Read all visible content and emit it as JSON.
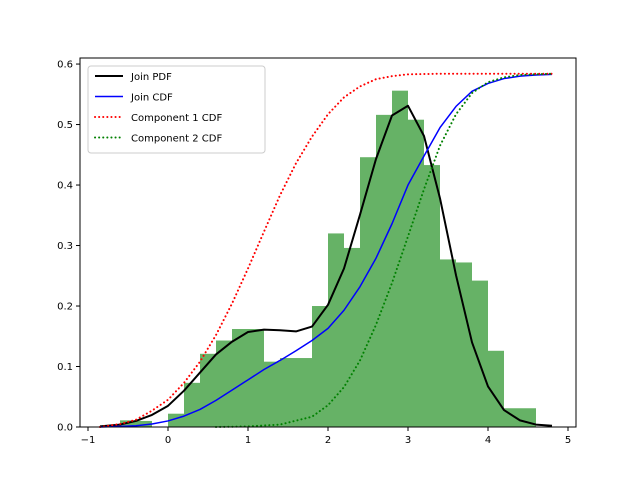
{
  "chart_data": {
    "type": "histogram+line",
    "title": "",
    "xlabel": "",
    "ylabel": "",
    "xlim": [
      -1.1,
      5.1
    ],
    "ylim": [
      0,
      0.61
    ],
    "xticks": [
      -1,
      0,
      1,
      2,
      3,
      4,
      5
    ],
    "yticks": [
      0.0,
      0.1,
      0.2,
      0.3,
      0.4,
      0.5,
      0.6
    ],
    "xtick_labels": [
      "−1",
      "0",
      "1",
      "2",
      "3",
      "4",
      "5"
    ],
    "ytick_labels": [
      "0.0",
      "0.1",
      "0.2",
      "0.3",
      "0.4",
      "0.5",
      "0.6"
    ],
    "grid": false,
    "legend_position": "top-left",
    "histogram": {
      "color": "#66b266",
      "bins": [
        {
          "x0": -0.6,
          "x1": -0.4,
          "value": 0.011
        },
        {
          "x0": -0.4,
          "x1": -0.2,
          "value": 0.01
        },
        {
          "x0": -0.2,
          "x1": 0.0,
          "value": 0.0
        },
        {
          "x0": 0.0,
          "x1": 0.2,
          "value": 0.022
        },
        {
          "x0": 0.2,
          "x1": 0.4,
          "value": 0.073
        },
        {
          "x0": 0.4,
          "x1": 0.6,
          "value": 0.121
        },
        {
          "x0": 0.6,
          "x1": 0.8,
          "value": 0.143
        },
        {
          "x0": 0.8,
          "x1": 1.0,
          "value": 0.162
        },
        {
          "x0": 1.0,
          "x1": 1.2,
          "value": 0.162
        },
        {
          "x0": 1.2,
          "x1": 1.4,
          "value": 0.108
        },
        {
          "x0": 1.4,
          "x1": 1.6,
          "value": 0.114
        },
        {
          "x0": 1.6,
          "x1": 1.8,
          "value": 0.114
        },
        {
          "x0": 1.8,
          "x1": 2.0,
          "value": 0.2
        },
        {
          "x0": 2.0,
          "x1": 2.2,
          "value": 0.32
        },
        {
          "x0": 2.2,
          "x1": 2.4,
          "value": 0.296
        },
        {
          "x0": 2.4,
          "x1": 2.6,
          "value": 0.446
        },
        {
          "x0": 2.6,
          "x1": 2.8,
          "value": 0.516
        },
        {
          "x0": 2.8,
          "x1": 3.0,
          "value": 0.556
        },
        {
          "x0": 3.0,
          "x1": 3.2,
          "value": 0.508
        },
        {
          "x0": 3.2,
          "x1": 3.4,
          "value": 0.433
        },
        {
          "x0": 3.4,
          "x1": 3.6,
          "value": 0.277
        },
        {
          "x0": 3.6,
          "x1": 3.8,
          "value": 0.272
        },
        {
          "x0": 3.8,
          "x1": 4.0,
          "value": 0.242
        },
        {
          "x0": 4.0,
          "x1": 4.2,
          "value": 0.126
        },
        {
          "x0": 4.2,
          "x1": 4.4,
          "value": 0.031
        },
        {
          "x0": 4.4,
          "x1": 4.6,
          "value": 0.031
        }
      ]
    },
    "series": [
      {
        "name": "Join PDF",
        "color": "#000000",
        "style": "solid",
        "width": 2,
        "x": [
          -0.85,
          -0.6,
          -0.4,
          -0.2,
          0.0,
          0.2,
          0.4,
          0.6,
          0.8,
          1.0,
          1.2,
          1.4,
          1.6,
          1.8,
          2.0,
          2.2,
          2.4,
          2.6,
          2.8,
          3.0,
          3.2,
          3.4,
          3.6,
          3.8,
          4.0,
          4.2,
          4.4,
          4.6,
          4.8
        ],
        "values": [
          0.001,
          0.004,
          0.01,
          0.02,
          0.035,
          0.06,
          0.09,
          0.12,
          0.141,
          0.157,
          0.161,
          0.16,
          0.158,
          0.166,
          0.202,
          0.262,
          0.351,
          0.443,
          0.515,
          0.531,
          0.481,
          0.378,
          0.251,
          0.14,
          0.067,
          0.028,
          0.011,
          0.004,
          0.002
        ]
      },
      {
        "name": "Join CDF",
        "color": "#0000ff",
        "style": "solid",
        "width": 1.5,
        "x": [
          -0.85,
          -0.6,
          -0.4,
          -0.2,
          0.0,
          0.2,
          0.4,
          0.6,
          0.8,
          1.0,
          1.2,
          1.4,
          1.6,
          1.8,
          2.0,
          2.2,
          2.4,
          2.6,
          2.8,
          3.0,
          3.2,
          3.4,
          3.6,
          3.8,
          4.0,
          4.2,
          4.4,
          4.6,
          4.8
        ],
        "values": [
          0.0,
          0.001,
          0.002,
          0.005,
          0.01,
          0.018,
          0.029,
          0.044,
          0.061,
          0.078,
          0.095,
          0.11,
          0.126,
          0.143,
          0.163,
          0.193,
          0.232,
          0.279,
          0.336,
          0.4,
          0.448,
          0.495,
          0.53,
          0.555,
          0.568,
          0.576,
          0.58,
          0.582,
          0.583
        ]
      },
      {
        "name": "Component 1 CDF",
        "color": "#ff0000",
        "style": "dotted",
        "width": 2,
        "x": [
          -0.85,
          -0.6,
          -0.4,
          -0.2,
          0.0,
          0.2,
          0.4,
          0.6,
          0.8,
          1.0,
          1.2,
          1.4,
          1.6,
          1.8,
          2.0,
          2.2,
          2.4,
          2.6,
          2.8,
          3.0,
          3.4,
          3.8,
          4.2,
          4.8
        ],
        "values": [
          0.0,
          0.005,
          0.012,
          0.027,
          0.045,
          0.073,
          0.108,
          0.152,
          0.204,
          0.262,
          0.323,
          0.383,
          0.436,
          0.48,
          0.517,
          0.545,
          0.563,
          0.575,
          0.58,
          0.583,
          0.584,
          0.584,
          0.584,
          0.584
        ]
      },
      {
        "name": "Component 2 CDF",
        "color": "#008000",
        "style": "dotted",
        "width": 2,
        "x": [
          0.6,
          1.0,
          1.4,
          1.8,
          2.0,
          2.2,
          2.4,
          2.6,
          2.8,
          3.0,
          3.2,
          3.4,
          3.6,
          3.8,
          4.0,
          4.2,
          4.4,
          4.6,
          4.8
        ],
        "values": [
          0.0,
          0.001,
          0.004,
          0.017,
          0.036,
          0.066,
          0.11,
          0.169,
          0.238,
          0.315,
          0.393,
          0.465,
          0.517,
          0.552,
          0.57,
          0.578,
          0.582,
          0.583,
          0.584
        ]
      }
    ],
    "legend": [
      "Join PDF",
      "Join CDF",
      "Component 1 CDF",
      "Component 2 CDF"
    ]
  }
}
